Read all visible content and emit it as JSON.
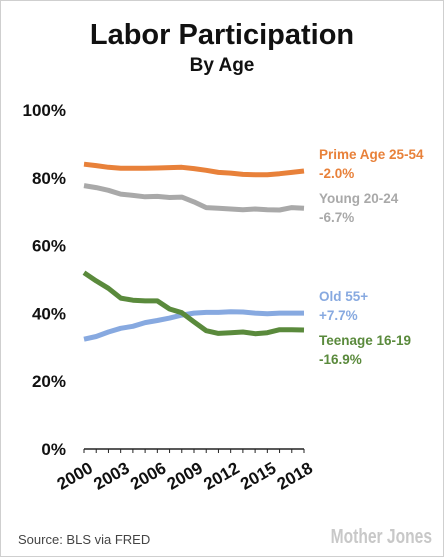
{
  "chart_data": {
    "type": "line",
    "title": "Labor Participation",
    "subtitle": "By Age",
    "source": "Source: BLS via FRED",
    "brand": "Mother Jones",
    "x": [
      2000,
      2001,
      2002,
      2003,
      2004,
      2005,
      2006,
      2007,
      2008,
      2009,
      2010,
      2011,
      2012,
      2013,
      2014,
      2015,
      2016,
      2017,
      2018
    ],
    "x_tick_labels": [
      "2000",
      "2003",
      "2006",
      "2009",
      "2012",
      "2015",
      "2018"
    ],
    "y_tick_labels": [
      "0%",
      "20%",
      "40%",
      "60%",
      "80%",
      "100%"
    ],
    "xlim": [
      2000,
      2018
    ],
    "ylim": [
      0,
      100
    ],
    "grid": false,
    "series": [
      {
        "name": "Prime Age 25-54",
        "change": "-2.0%",
        "color": "#e8813a",
        "values": [
          84.0,
          83.6,
          83.1,
          82.8,
          82.8,
          82.8,
          82.9,
          83.0,
          83.1,
          82.7,
          82.2,
          81.6,
          81.4,
          81.0,
          80.9,
          80.9,
          81.2,
          81.6,
          82.0
        ]
      },
      {
        "name": "Young 20-24",
        "change": "-6.7%",
        "color": "#a9a9a9",
        "values": [
          77.7,
          77.1,
          76.3,
          75.2,
          74.8,
          74.4,
          74.5,
          74.2,
          74.3,
          72.9,
          71.2,
          71.0,
          70.8,
          70.6,
          70.8,
          70.6,
          70.5,
          71.2,
          71.0
        ]
      },
      {
        "name": "Old 55+",
        "change": "+7.7%",
        "color": "#87a9e0",
        "values": [
          32.4,
          33.2,
          34.5,
          35.6,
          36.2,
          37.3,
          37.9,
          38.6,
          39.5,
          40.1,
          40.3,
          40.3,
          40.5,
          40.4,
          40.1,
          39.9,
          40.1,
          40.1,
          40.1
        ]
      },
      {
        "name": "Teenage 16-19",
        "change": "-16.9%",
        "color": "#5a8a3c",
        "values": [
          52.0,
          49.6,
          47.4,
          44.5,
          43.9,
          43.7,
          43.7,
          41.3,
          40.2,
          37.5,
          34.9,
          34.1,
          34.3,
          34.5,
          34.0,
          34.3,
          35.2,
          35.2,
          35.1
        ]
      }
    ]
  }
}
